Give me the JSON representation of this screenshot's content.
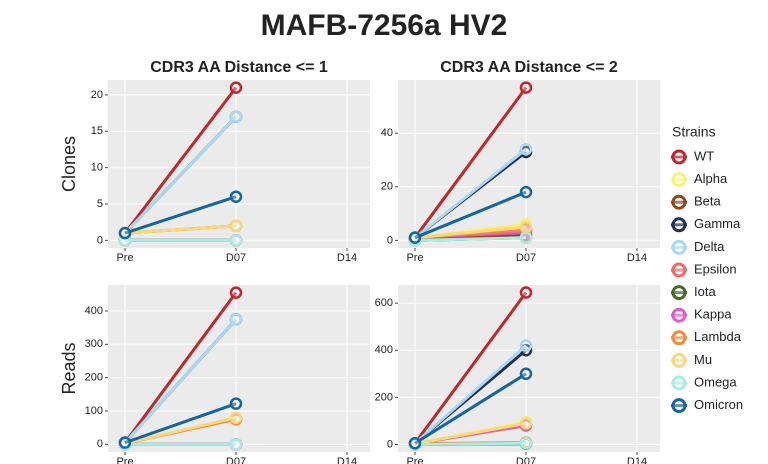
{
  "chart_data": {
    "type": "line",
    "title": "MAFB-7256a HV2",
    "legend_title": "Strains",
    "categories": [
      "Pre",
      "D07",
      "D14"
    ],
    "series": [
      {
        "name": "WT",
        "color": "#c0272d"
      },
      {
        "name": "Alpha",
        "color": "#f5f27a"
      },
      {
        "name": "Beta",
        "color": "#8c4a1c"
      },
      {
        "name": "Gamma",
        "color": "#1f2d5a"
      },
      {
        "name": "Delta",
        "color": "#a9d9f2"
      },
      {
        "name": "Epsilon",
        "color": "#f26b6b"
      },
      {
        "name": "Iota",
        "color": "#466b25"
      },
      {
        "name": "Kappa",
        "color": "#e45ac9"
      },
      {
        "name": "Lambda",
        "color": "#f08c3a"
      },
      {
        "name": "Mu",
        "color": "#f7d97c"
      },
      {
        "name": "Omega",
        "color": "#a8ece6"
      },
      {
        "name": "Omicron",
        "color": "#1565a0"
      }
    ],
    "panels": [
      {
        "title": "CDR3 AA Distance <= 1",
        "ylabel": "Clones",
        "ylim": [
          -1.05,
          22.05
        ],
        "yticks": [
          0,
          5,
          10,
          15,
          20
        ],
        "values": [
          [
            1,
            21,
            null
          ],
          [
            1,
            2,
            null
          ],
          [
            0,
            0,
            null
          ],
          [
            1,
            17,
            null
          ],
          [
            1,
            17,
            null
          ],
          [
            1,
            2,
            null
          ],
          [
            0,
            0,
            null
          ],
          [
            0,
            0,
            null
          ],
          [
            1,
            2,
            null
          ],
          [
            1,
            2,
            null
          ],
          [
            0,
            0,
            null
          ],
          [
            1,
            6,
            null
          ]
        ]
      },
      {
        "title": "CDR3 AA Distance <= 2",
        "ylim": [
          -2.85,
          59.85
        ],
        "yticks": [
          0,
          20,
          40
        ],
        "values": [
          [
            1,
            57,
            null
          ],
          [
            1,
            6,
            null
          ],
          [
            0,
            2,
            null
          ],
          [
            1,
            33,
            null
          ],
          [
            1,
            34,
            null
          ],
          [
            1,
            4,
            null
          ],
          [
            0,
            1,
            null
          ],
          [
            1,
            3,
            null
          ],
          [
            1,
            4,
            null
          ],
          [
            1,
            5,
            null
          ],
          [
            0,
            1,
            null
          ],
          [
            1,
            18,
            null
          ]
        ]
      },
      {
        "ylabel": "Reads",
        "ylim": [
          -23,
          478
        ],
        "yticks": [
          0,
          100,
          200,
          300,
          400
        ],
        "values": [
          [
            5,
            455,
            null
          ],
          [
            3,
            78,
            null
          ],
          [
            0,
            0,
            null
          ],
          [
            5,
            375,
            null
          ],
          [
            5,
            375,
            null
          ],
          [
            3,
            78,
            null
          ],
          [
            0,
            0,
            null
          ],
          [
            0,
            0,
            null
          ],
          [
            3,
            75,
            null
          ],
          [
            3,
            80,
            null
          ],
          [
            0,
            0,
            null
          ],
          [
            5,
            122,
            null
          ]
        ]
      },
      {
        "ylim": [
          -32,
          677
        ],
        "yticks": [
          0,
          200,
          400,
          600
        ],
        "values": [
          [
            5,
            645,
            null
          ],
          [
            3,
            95,
            null
          ],
          [
            0,
            5,
            null
          ],
          [
            5,
            400,
            null
          ],
          [
            5,
            420,
            null
          ],
          [
            3,
            80,
            null
          ],
          [
            0,
            3,
            null
          ],
          [
            3,
            85,
            null
          ],
          [
            3,
            8,
            null
          ],
          [
            3,
            90,
            null
          ],
          [
            0,
            5,
            null
          ],
          [
            5,
            300,
            null
          ]
        ]
      }
    ]
  }
}
